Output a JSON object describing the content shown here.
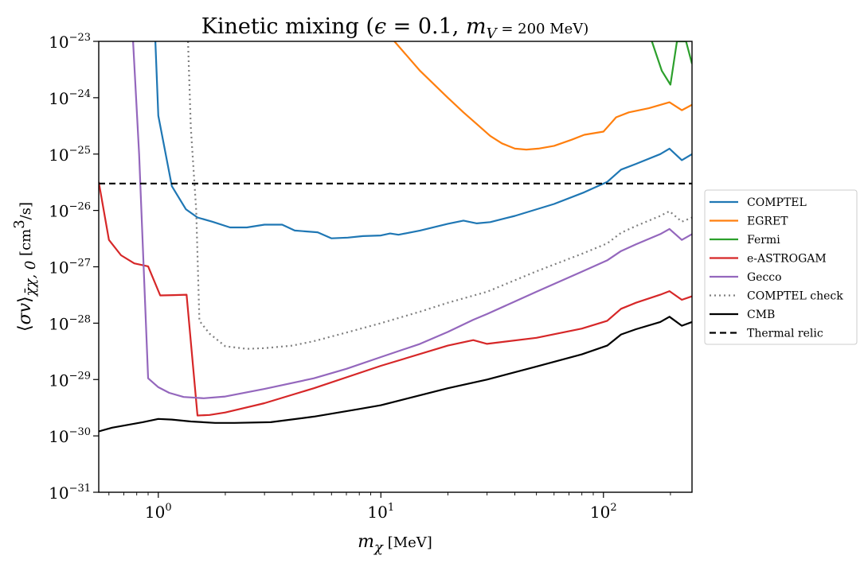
{
  "chart_data": {
    "type": "line",
    "title": "Kinetic mixing (ϵ = 0.1, m_V = 200 MeV)",
    "xlabel": "m_χ [MeV]",
    "ylabel": "⟨σv⟩_{χ̄χ,0} [cm³/s]",
    "x_scale": "log",
    "y_scale": "log",
    "xlim": [
      0.54,
      250
    ],
    "ylim": [
      1e-31,
      1e-23
    ],
    "x_ticks": [
      {
        "value": 1,
        "base": "10",
        "exp": "0"
      },
      {
        "value": 10,
        "base": "10",
        "exp": "1"
      },
      {
        "value": 100,
        "base": "10",
        "exp": "2"
      }
    ],
    "y_ticks": [
      {
        "value": 1e-31,
        "base": "10",
        "exp": "−31"
      },
      {
        "value": 1e-30,
        "base": "10",
        "exp": "−30"
      },
      {
        "value": 1e-29,
        "base": "10",
        "exp": "−29"
      },
      {
        "value": 1e-28,
        "base": "10",
        "exp": "−28"
      },
      {
        "value": 1e-27,
        "base": "10",
        "exp": "−27"
      },
      {
        "value": 1e-26,
        "base": "10",
        "exp": "−26"
      },
      {
        "value": 1e-25,
        "base": "10",
        "exp": "−25"
      },
      {
        "value": 1e-24,
        "base": "10",
        "exp": "−24"
      },
      {
        "value": 1e-23,
        "base": "10",
        "exp": "−23"
      }
    ],
    "grid": false,
    "legend_position": "outside right",
    "series": [
      {
        "name": "COMPTEL",
        "color": "#1f77b4",
        "dash": "solid",
        "x": [
          0.97,
          1.0,
          1.15,
          1.33,
          1.5,
          1.75,
          2.1,
          2.5,
          3.0,
          3.6,
          4.1,
          5.2,
          6.0,
          7.1,
          8.3,
          10.0,
          11.0,
          12.0,
          15.0,
          20.0,
          23.5,
          27.0,
          31.0,
          40.0,
          60.0,
          82.0,
          104.0,
          120.0,
          140.0,
          180.0,
          198.0,
          225.0,
          250.0
        ],
        "y": [
          1e-23,
          4.8e-25,
          2.7e-26,
          1.05e-26,
          7.5e-27,
          6.3e-27,
          5e-27,
          5e-27,
          5.6e-27,
          5.6e-27,
          4.4e-27,
          4.1e-27,
          3.2e-27,
          3.3e-27,
          3.5e-27,
          3.6e-27,
          3.9e-27,
          3.7e-27,
          4.4e-27,
          5.8e-27,
          6.6e-27,
          5.9e-27,
          6.2e-27,
          8e-27,
          1.3e-26,
          2.1e-26,
          3.2e-26,
          5.3e-26,
          6.7e-26,
          1e-25,
          1.25e-25,
          7.8e-26,
          1e-25
        ]
      },
      {
        "name": "EGRET",
        "color": "#ff7f0e",
        "dash": "solid",
        "x": [
          11.5,
          15.0,
          20.0,
          23.5,
          27.0,
          31.0,
          35.0,
          40.0,
          45.0,
          51.0,
          60.0,
          72.0,
          82.0,
          100.0,
          114.0,
          130.0,
          160.0,
          198.0,
          225.0,
          250.0
        ],
        "y": [
          1e-23,
          3e-24,
          1e-24,
          5.5e-25,
          3.4e-25,
          2.1e-25,
          1.55e-25,
          1.25e-25,
          1.2e-25,
          1.25e-25,
          1.4e-25,
          1.8e-25,
          2.2e-25,
          2.5e-25,
          4.5e-25,
          5.5e-25,
          6.5e-25,
          8.3e-25,
          6e-25,
          7.5e-25
        ]
      },
      {
        "name": "Fermi",
        "color": "#2ca02c",
        "dash": "solid",
        "x": [
          165.0,
          183.0,
          200.0,
          214.0,
          235.0,
          250.0
        ],
        "y": [
          1e-23,
          3e-24,
          1.7e-24,
          1e-23,
          1e-23,
          4e-24
        ]
      },
      {
        "name": "e-ASTROGAM",
        "color": "#d62728",
        "dash": "solid",
        "x": [
          0.54,
          0.6,
          0.68,
          0.78,
          0.9,
          1.02,
          1.17,
          1.34,
          1.5,
          1.7,
          2.0,
          3.0,
          5.0,
          10.0,
          20.0,
          26.0,
          30.0,
          50.0,
          80.0,
          104.0,
          120.0,
          140.0,
          180.0,
          198.0,
          225.0,
          250.0
        ],
        "y": [
          3.2e-26,
          3e-27,
          1.6e-27,
          1.15e-27,
          1.02e-27,
          3.1e-28,
          3.15e-28,
          3.2e-28,
          2.3e-30,
          2.35e-30,
          2.6e-30,
          3.8e-30,
          7e-30,
          1.75e-29,
          4e-29,
          5e-29,
          4.3e-29,
          5.5e-29,
          8e-29,
          1.1e-28,
          1.8e-28,
          2.3e-28,
          3.2e-28,
          3.7e-28,
          2.6e-28,
          3e-28
        ]
      },
      {
        "name": "Gecco",
        "color": "#9467bd",
        "dash": "solid",
        "x": [
          0.77,
          0.82,
          0.9,
          1.0,
          1.12,
          1.3,
          1.6,
          2.0,
          3.0,
          5.0,
          7.0,
          10.0,
          15.0,
          20.0,
          26.0,
          30.0,
          50.0,
          80.0,
          104.0,
          120.0,
          140.0,
          180.0,
          198.0,
          225.0,
          250.0
        ],
        "y": [
          1e-23,
          1e-25,
          1.05e-29,
          7.3e-30,
          5.8e-30,
          4.9e-30,
          4.65e-30,
          5e-30,
          6.8e-30,
          1.05e-29,
          1.55e-29,
          2.5e-29,
          4.3e-29,
          7e-29,
          1.15e-28,
          1.45e-28,
          3.6e-28,
          8.2e-28,
          1.3e-27,
          1.9e-27,
          2.5e-27,
          3.8e-27,
          4.7e-27,
          3e-27,
          3.8e-27
        ]
      },
      {
        "name": "COMPTEL check",
        "color": "#7f7f7f",
        "dash": "dotted",
        "x": [
          1.36,
          1.4,
          1.48,
          1.53,
          1.7,
          2.0,
          2.5,
          3.0,
          4.0,
          5.0,
          7.0,
          10.0,
          15.0,
          20.0,
          30.0,
          50.0,
          80.0,
          104.0,
          120.0,
          140.0,
          180.0,
          198.0,
          225.0,
          250.0
        ],
        "y": [
          1e-23,
          3e-25,
          1e-26,
          1.1e-28,
          6.5e-29,
          3.9e-29,
          3.5e-29,
          3.6e-29,
          4e-29,
          4.8e-29,
          6.8e-29,
          1e-28,
          1.6e-28,
          2.3e-28,
          3.6e-28,
          8.3e-28,
          1.7e-27,
          2.6e-27,
          4e-27,
          5.3e-27,
          8e-27,
          9.7e-27,
          6.3e-27,
          7.5e-27
        ]
      },
      {
        "name": "CMB",
        "color": "#000000",
        "dash": "solid",
        "x": [
          0.54,
          0.62,
          0.72,
          0.85,
          1.0,
          1.15,
          1.4,
          1.8,
          2.2,
          3.2,
          5.0,
          8.0,
          10.0,
          20.0,
          30.0,
          50.0,
          80.0,
          104.0,
          120.0,
          140.0,
          180.0,
          198.0,
          225.0,
          250.0
        ],
        "y": [
          1.2e-30,
          1.4e-30,
          1.55e-30,
          1.75e-30,
          2e-30,
          1.95e-30,
          1.8e-30,
          1.7e-30,
          1.7e-30,
          1.75e-30,
          2.2e-30,
          3e-30,
          3.5e-30,
          7e-30,
          1e-29,
          1.7e-29,
          2.8e-29,
          4e-29,
          6.3e-29,
          7.8e-29,
          1.05e-28,
          1.3e-28,
          9e-29,
          1.05e-28
        ]
      },
      {
        "name": "Thermal relic",
        "color": "#000000",
        "dash": "dashed",
        "x": [
          0.54,
          250.0
        ],
        "y": [
          3e-26,
          3e-26
        ]
      }
    ]
  }
}
